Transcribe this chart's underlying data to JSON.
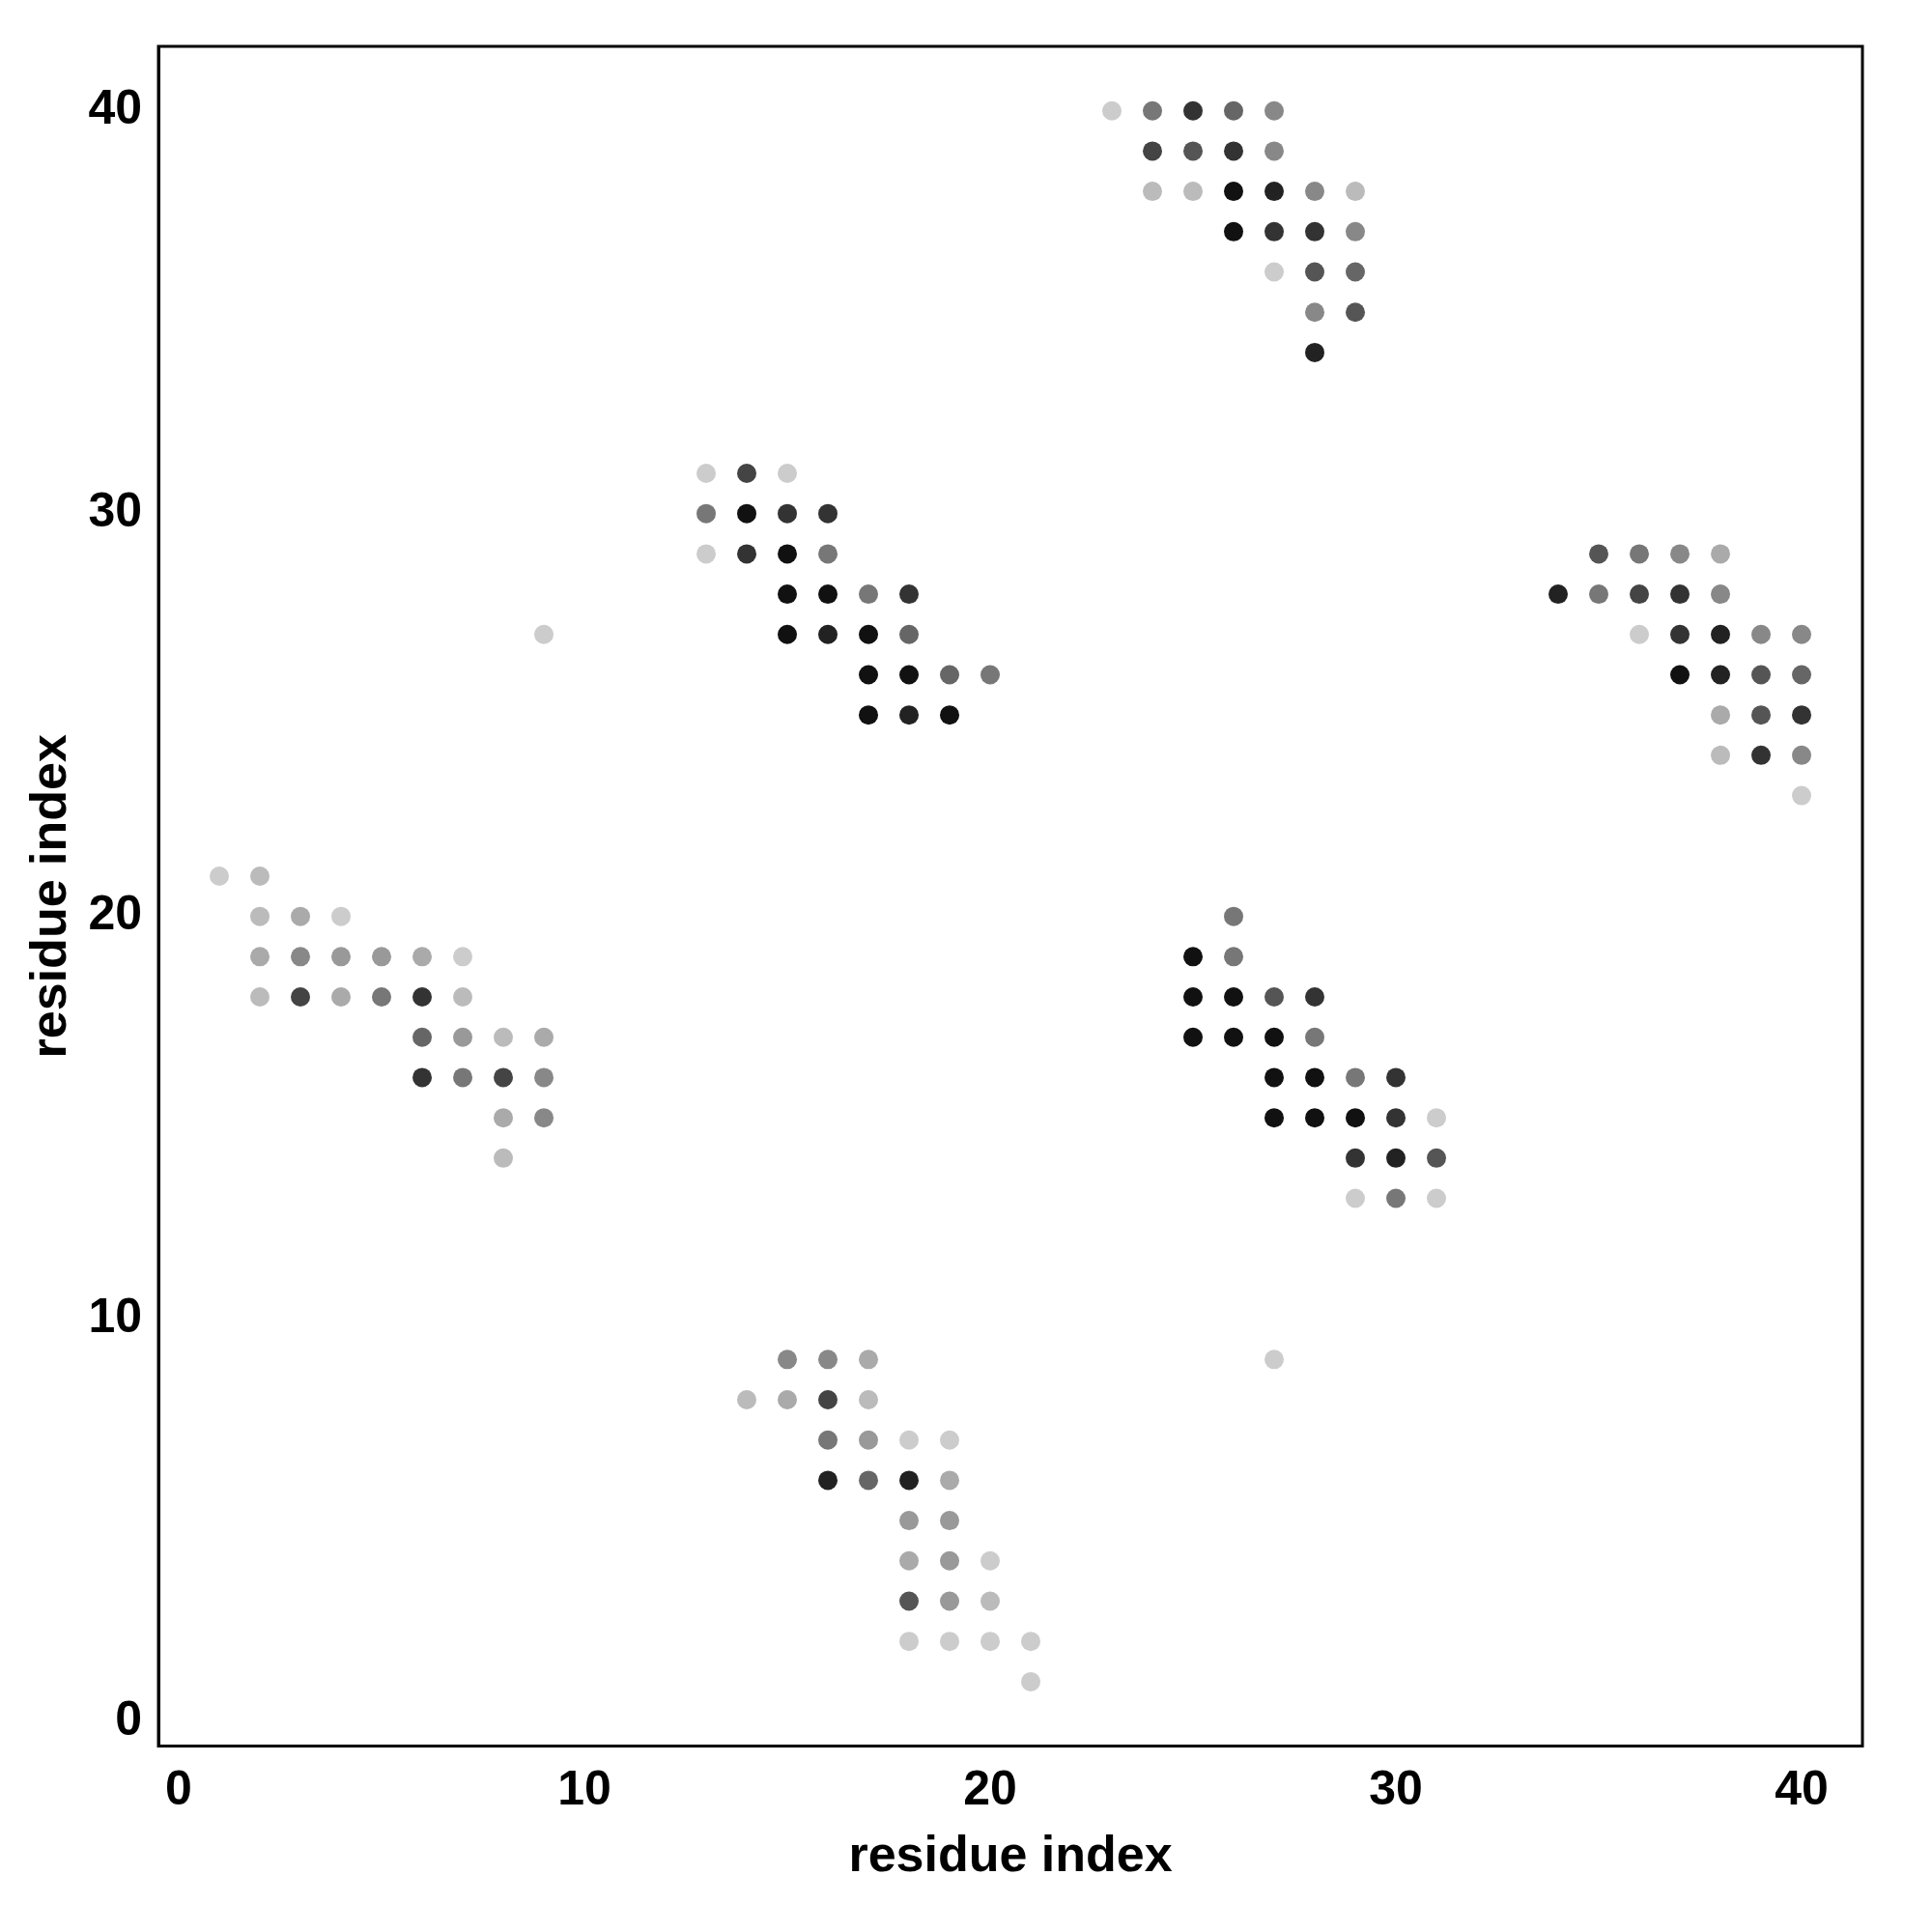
{
  "chart_data": {
    "type": "scatter",
    "xlabel": "residue index",
    "ylabel": "residue index",
    "xlim": [
      -0.5,
      41.5
    ],
    "ylim": [
      -0.6,
      41.6
    ],
    "xticks": [
      0,
      10,
      20,
      30,
      40
    ],
    "yticks": [
      0,
      10,
      20,
      30,
      40
    ],
    "marker": "circle",
    "grid": false,
    "series": [
      {
        "x": [
          23,
          24,
          25,
          26,
          27,
          24,
          25,
          26,
          27,
          24,
          25,
          26,
          27,
          28,
          29,
          26,
          27,
          28,
          29,
          27,
          28,
          29,
          28,
          29,
          28,
          13,
          14,
          15,
          13,
          14,
          15,
          16,
          13,
          14,
          15,
          16,
          35,
          36,
          37,
          38,
          15,
          16,
          17,
          18,
          34,
          35,
          36,
          37,
          38,
          9,
          15,
          16,
          17,
          18,
          36,
          37,
          38,
          39,
          40,
          17,
          18,
          19,
          20,
          37,
          38,
          39,
          40,
          17,
          18,
          19,
          38,
          39,
          40,
          38,
          39,
          40,
          40,
          1,
          2,
          2,
          3,
          4,
          26,
          2,
          3,
          4,
          5,
          6,
          7,
          25,
          26,
          2,
          3,
          4,
          5,
          6,
          7,
          25,
          26,
          27,
          28,
          6,
          7,
          8,
          9,
          25,
          26,
          27,
          28,
          6,
          7,
          8,
          9,
          27,
          28,
          29,
          30,
          8,
          9,
          27,
          28,
          29,
          30,
          31,
          8,
          29,
          30,
          31,
          29,
          30,
          31,
          15,
          16,
          17,
          27,
          14,
          15,
          16,
          17,
          16,
          17,
          18,
          19,
          16,
          17,
          18,
          19,
          18,
          19,
          18,
          19,
          20,
          18,
          19,
          20,
          18,
          19,
          20,
          21,
          21
        ],
        "values": [
          40,
          40,
          40,
          40,
          40,
          39,
          39,
          39,
          39,
          38,
          38,
          38,
          38,
          38,
          38,
          37,
          37,
          37,
          37,
          36,
          36,
          36,
          35,
          35,
          34,
          31,
          31,
          31,
          30,
          30,
          30,
          30,
          29,
          29,
          29,
          29,
          29,
          29,
          29,
          29,
          28,
          28,
          28,
          28,
          28,
          28,
          28,
          28,
          28,
          27,
          27,
          27,
          27,
          27,
          27,
          27,
          27,
          27,
          27,
          26,
          26,
          26,
          26,
          26,
          26,
          26,
          26,
          25,
          25,
          25,
          25,
          25,
          25,
          24,
          24,
          24,
          23,
          21,
          21,
          20,
          20,
          20,
          20,
          19,
          19,
          19,
          19,
          19,
          19,
          19,
          19,
          18,
          18,
          18,
          18,
          18,
          18,
          18,
          18,
          18,
          18,
          17,
          17,
          17,
          17,
          17,
          17,
          17,
          17,
          16,
          16,
          16,
          16,
          16,
          16,
          16,
          16,
          15,
          15,
          15,
          15,
          15,
          15,
          15,
          14,
          14,
          14,
          14,
          13,
          13,
          13,
          9,
          9,
          9,
          9,
          8,
          8,
          8,
          8,
          7,
          7,
          7,
          7,
          6,
          6,
          6,
          6,
          5,
          5,
          4,
          4,
          4,
          3,
          3,
          3,
          2,
          2,
          2,
          2,
          1
        ],
        "colors": [
          "#cccccc",
          "#777777",
          "#333333",
          "#666666",
          "#888888",
          "#444444",
          "#555555",
          "#333333",
          "#888888",
          "#bbbbbb",
          "#bbbbbb",
          "#111111",
          "#222222",
          "#888888",
          "#bbbbbb",
          "#111111",
          "#333333",
          "#333333",
          "#888888",
          "#cccccc",
          "#555555",
          "#666666",
          "#888888",
          "#555555",
          "#222222",
          "#cccccc",
          "#444444",
          "#cccccc",
          "#777777",
          "#111111",
          "#333333",
          "#333333",
          "#cccccc",
          "#333333",
          "#111111",
          "#777777",
          "#555555",
          "#777777",
          "#888888",
          "#aaaaaa",
          "#111111",
          "#111111",
          "#777777",
          "#333333",
          "#222222",
          "#777777",
          "#444444",
          "#333333",
          "#888888",
          "#cccccc",
          "#111111",
          "#222222",
          "#111111",
          "#666666",
          "#cccccc",
          "#333333",
          "#222222",
          "#888888",
          "#888888",
          "#111111",
          "#111111",
          "#666666",
          "#777777",
          "#111111",
          "#222222",
          "#555555",
          "#666666",
          "#111111",
          "#222222",
          "#111111",
          "#aaaaaa",
          "#555555",
          "#333333",
          "#bbbbbb",
          "#333333",
          "#888888",
          "#cccccc",
          "#cccccc",
          "#bbbbbb",
          "#bbbbbb",
          "#aaaaaa",
          "#cccccc",
          "#777777",
          "#aaaaaa",
          "#888888",
          "#999999",
          "#999999",
          "#aaaaaa",
          "#cccccc",
          "#111111",
          "#777777",
          "#bbbbbb",
          "#444444",
          "#aaaaaa",
          "#777777",
          "#333333",
          "#bbbbbb",
          "#111111",
          "#111111",
          "#555555",
          "#333333",
          "#666666",
          "#999999",
          "#bbbbbb",
          "#aaaaaa",
          "#111111",
          "#111111",
          "#111111",
          "#777777",
          "#333333",
          "#777777",
          "#444444",
          "#888888",
          "#111111",
          "#111111",
          "#777777",
          "#333333",
          "#aaaaaa",
          "#888888",
          "#111111",
          "#111111",
          "#111111",
          "#333333",
          "#cccccc",
          "#bbbbbb",
          "#333333",
          "#222222",
          "#555555",
          "#cccccc",
          "#777777",
          "#cccccc",
          "#888888",
          "#888888",
          "#aaaaaa",
          "#cccccc",
          "#bbbbbb",
          "#aaaaaa",
          "#444444",
          "#bbbbbb",
          "#777777",
          "#999999",
          "#cccccc",
          "#cccccc",
          "#222222",
          "#666666",
          "#222222",
          "#aaaaaa",
          "#999999",
          "#999999",
          "#aaaaaa",
          "#999999",
          "#cccccc",
          "#555555",
          "#999999",
          "#bbbbbb",
          "#cccccc",
          "#cccccc",
          "#cccccc",
          "#cccccc",
          "#cccccc"
        ]
      }
    ]
  }
}
